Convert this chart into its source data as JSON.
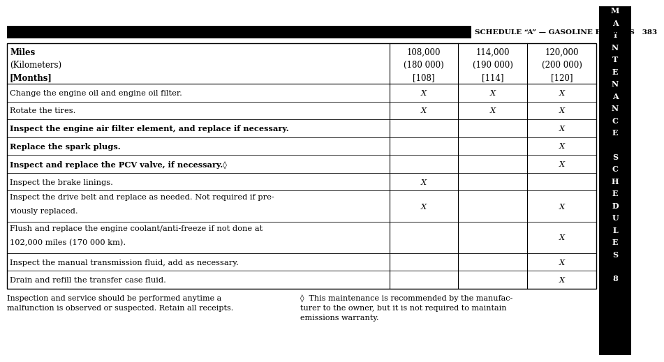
{
  "title_bar_text": "SCHEDULE “A” — GASOLINE ENGINES   383",
  "sidebar_letters": [
    "M",
    "A",
    "I",
    "N",
    "T",
    "E",
    "N",
    "A",
    "N",
    "C",
    "E",
    "",
    "S",
    "C",
    "H",
    "E",
    "D",
    "U",
    "L",
    "E",
    "S",
    "",
    "8"
  ],
  "header_col0": [
    "Miles",
    "(Kilometers)",
    "[Months]"
  ],
  "header_col1": [
    "108,000",
    "(180 000)",
    "[108]"
  ],
  "header_col2": [
    "114,000",
    "(190 000)",
    "[114]"
  ],
  "header_col3": [
    "120,000",
    "(200 000)",
    "[120]"
  ],
  "header_bold": [
    true,
    false,
    true
  ],
  "rows": [
    {
      "text": "Change the engine oil and engine oil filter.",
      "bold": false,
      "col1": "X",
      "col2": "X",
      "col3": "X",
      "multiline": false
    },
    {
      "text": "Rotate the tires.",
      "bold": false,
      "col1": "X",
      "col2": "X",
      "col3": "X",
      "multiline": false
    },
    {
      "text": "Inspect the engine air filter element, and replace if necessary.",
      "bold": true,
      "col1": "",
      "col2": "",
      "col3": "X",
      "multiline": false
    },
    {
      "text": "Replace the spark plugs.",
      "bold": true,
      "col1": "",
      "col2": "",
      "col3": "X",
      "multiline": false
    },
    {
      "text": "Inspect and replace the PCV valve, if necessary.◊",
      "bold": true,
      "col1": "",
      "col2": "",
      "col3": "X",
      "multiline": false
    },
    {
      "text": "Inspect the brake linings.",
      "bold": false,
      "col1": "X",
      "col2": "",
      "col3": "",
      "multiline": false
    },
    {
      "text": [
        "Inspect the drive belt and replace as needed. Not required if pre-",
        "viously replaced."
      ],
      "bold": false,
      "col1": "X",
      "col2": "",
      "col3": "X",
      "multiline": true
    },
    {
      "text": [
        "Flush and replace the engine coolant/anti-freeze if not done at",
        "102,000 miles (170 000 km)."
      ],
      "bold": false,
      "col1": "",
      "col2": "",
      "col3": "X",
      "multiline": true
    },
    {
      "text": "Inspect the manual transmission fluid, add as necessary.",
      "bold": false,
      "col1": "",
      "col2": "",
      "col3": "X",
      "multiline": false
    },
    {
      "text": "Drain and refill the transfer case fluid.",
      "bold": false,
      "col1": "",
      "col2": "",
      "col3": "X",
      "multiline": false
    }
  ],
  "footer_left_lines": [
    "Inspection and service should be performed anytime a",
    "malfunction is observed or suspected. Retain all receipts."
  ],
  "footer_right_lines": [
    "◊  This maintenance is recommended by the manufac-",
    "turer to the owner, but it is not required to maintain",
    "emissions warranty."
  ],
  "bg_color": "#ffffff",
  "sidebar_bg": "#000000",
  "header_bar_color": "#000000"
}
